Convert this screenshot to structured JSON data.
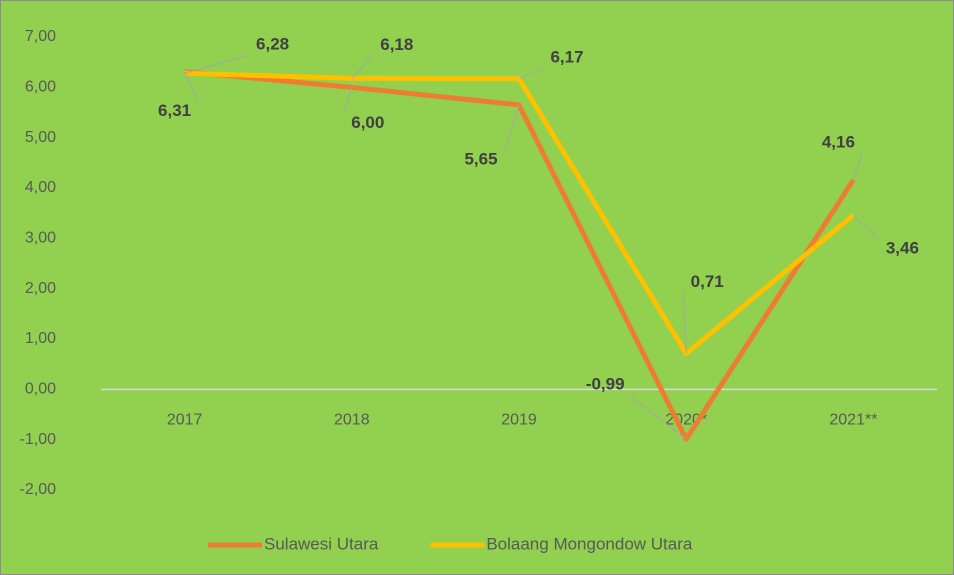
{
  "chart_data": {
    "type": "line",
    "categories": [
      "2017",
      "2018",
      "2019",
      "2020*",
      "2021**"
    ],
    "series": [
      {
        "name": "Sulawesi Utara",
        "color": "#ED7D31",
        "values": [
          6.31,
          6.0,
          5.65,
          -0.99,
          4.16
        ],
        "value_labels": [
          "6,31",
          "6,00",
          "5,65",
          "-0,99",
          "4,16"
        ]
      },
      {
        "name": "Bolaang Mongondow Utara",
        "color": "#FFC000",
        "values": [
          6.28,
          6.18,
          6.17,
          0.71,
          3.46
        ],
        "value_labels": [
          "6,28",
          "6,18",
          "6,17",
          "0,71",
          "3,46"
        ]
      }
    ],
    "ylim": [
      -2,
      7
    ],
    "yticks": [
      {
        "value": -2,
        "label": "-2,00"
      },
      {
        "value": -1,
        "label": "-1,00"
      },
      {
        "value": 0,
        "label": "0,00"
      },
      {
        "value": 1,
        "label": "1,00"
      },
      {
        "value": 2,
        "label": "2,00"
      },
      {
        "value": 3,
        "label": "3,00"
      },
      {
        "value": 4,
        "label": "4,00"
      },
      {
        "value": 5,
        "label": "5,00"
      },
      {
        "value": 6,
        "label": "6,00"
      },
      {
        "value": 7,
        "label": "7,00"
      }
    ],
    "legend": "bottom"
  }
}
